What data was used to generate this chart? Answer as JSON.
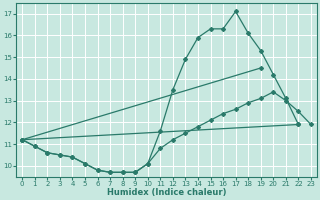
{
  "xlabel": "Humidex (Indice chaleur)",
  "background_color": "#c8e8e0",
  "grid_color": "#ffffff",
  "line_color": "#2a7a6a",
  "xlim": [
    -0.5,
    23.5
  ],
  "ylim": [
    9.5,
    17.5
  ],
  "xticks": [
    0,
    1,
    2,
    3,
    4,
    5,
    6,
    7,
    8,
    9,
    10,
    11,
    12,
    13,
    14,
    15,
    16,
    17,
    18,
    19,
    20,
    21,
    22,
    23
  ],
  "yticks": [
    10,
    11,
    12,
    13,
    14,
    15,
    16,
    17
  ],
  "curves": [
    {
      "x": [
        0,
        1,
        2,
        3,
        4,
        5,
        6,
        7,
        8,
        9,
        10,
        11,
        12,
        13,
        14,
        15,
        16,
        17,
        18,
        19,
        20,
        21,
        22
      ],
      "y": [
        11.2,
        10.9,
        10.6,
        10.5,
        10.4,
        10.1,
        9.8,
        9.7,
        9.7,
        9.7,
        10.1,
        11.6,
        13.5,
        14.9,
        15.9,
        16.3,
        16.3,
        17.1,
        16.1,
        15.3,
        14.2,
        13.1,
        11.9
      ]
    },
    {
      "x": [
        0,
        19
      ],
      "y": [
        11.2,
        14.5
      ]
    },
    {
      "x": [
        0,
        22
      ],
      "y": [
        11.2,
        11.9
      ]
    },
    {
      "x": [
        0,
        1,
        2,
        3,
        4,
        5,
        6,
        7,
        8,
        9,
        10,
        11,
        12,
        13,
        14,
        15,
        16,
        17,
        18,
        19,
        20,
        21,
        22,
        23
      ],
      "y": [
        11.2,
        10.9,
        10.6,
        10.5,
        10.4,
        10.1,
        9.8,
        9.7,
        9.7,
        9.7,
        10.1,
        10.8,
        11.2,
        11.5,
        11.8,
        12.1,
        12.4,
        12.6,
        12.9,
        13.1,
        13.4,
        13.0,
        12.5,
        11.9
      ]
    }
  ],
  "figsize": [
    3.2,
    2.0
  ],
  "dpi": 100
}
